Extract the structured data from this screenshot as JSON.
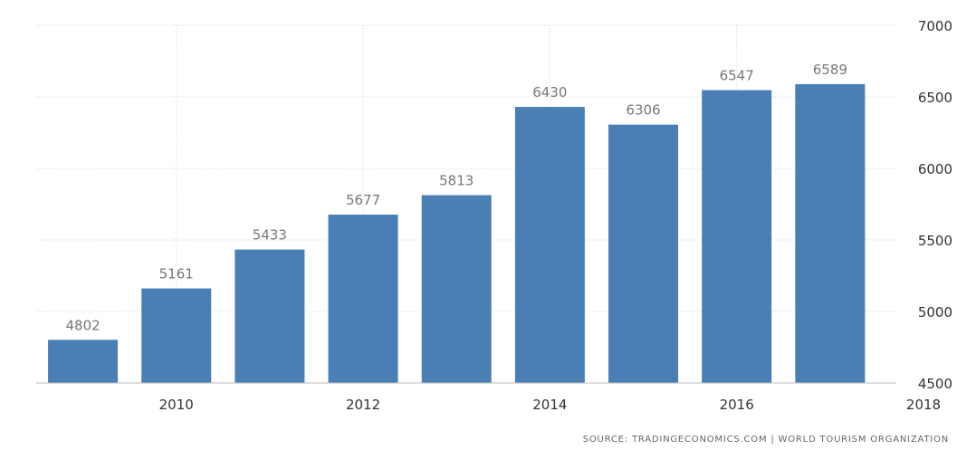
{
  "chart_data": {
    "type": "bar",
    "categories": [
      "2009",
      "2010",
      "2011",
      "2012",
      "2013",
      "2014",
      "2015",
      "2016",
      "2017"
    ],
    "values": [
      4802,
      5161,
      5433,
      5677,
      5813,
      6430,
      6306,
      6547,
      6589
    ],
    "data_labels": [
      "4802",
      "5161",
      "5433",
      "5677",
      "5813",
      "6430",
      "6306",
      "6547",
      "6589"
    ],
    "x_ticks": [
      "2010",
      "2012",
      "2014",
      "2016",
      "2018"
    ],
    "y_ticks": [
      "4500",
      "5000",
      "5500",
      "6000",
      "6500",
      "7000"
    ],
    "ylim": [
      4500,
      7000
    ],
    "xlim": [
      2008.5,
      2018
    ],
    "y_axis_side": "right",
    "grid": true,
    "bar_color": "#4a7fb5",
    "title": "",
    "xlabel": "",
    "ylabel": ""
  },
  "source": {
    "text": "SOURCE: TRADINGECONOMICS.COM | WORLD TOURISM ORGANIZATION"
  }
}
